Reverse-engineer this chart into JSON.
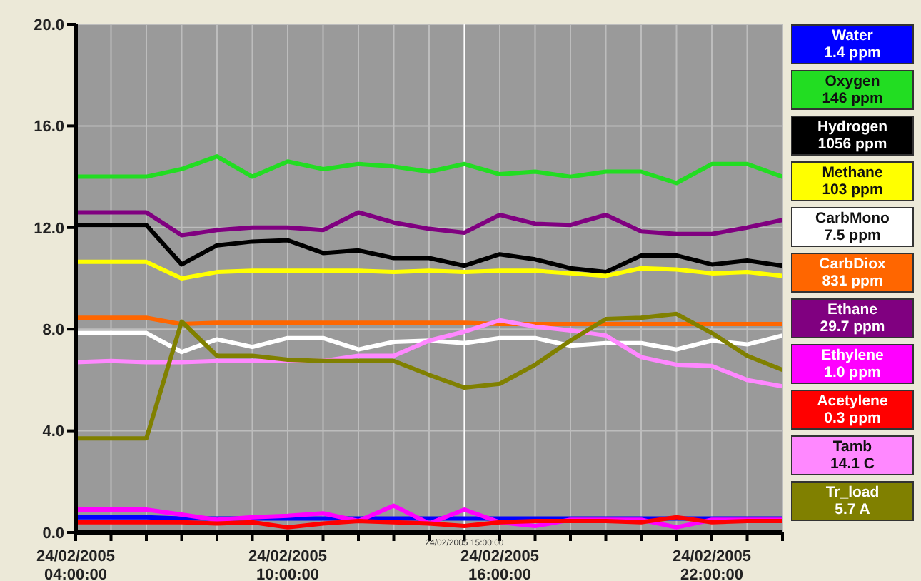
{
  "chart_data": {
    "type": "line",
    "x": [
      "2005-02-24T04:00",
      "2005-02-24T05:00",
      "2005-02-24T06:00",
      "2005-02-24T07:00",
      "2005-02-24T08:00",
      "2005-02-24T09:00",
      "2005-02-24T10:00",
      "2005-02-24T11:00",
      "2005-02-24T12:00",
      "2005-02-24T13:00",
      "2005-02-24T14:00",
      "2005-02-24T15:00",
      "2005-02-24T16:00",
      "2005-02-24T17:00",
      "2005-02-24T18:00",
      "2005-02-24T19:00",
      "2005-02-24T20:00",
      "2005-02-24T21:00",
      "2005-02-24T22:00",
      "2005-02-24T23:00",
      "2005-02-25T00:00"
    ],
    "xlim": [
      "2005-02-24T04:00",
      "2005-02-25T00:00"
    ],
    "xticks": [
      {
        "value": "2005-02-24T04:00",
        "label": "24/02/2005 04:00:00"
      },
      {
        "value": "2005-02-24T05:00",
        "label": null
      },
      {
        "value": "2005-02-24T06:00",
        "label": null
      },
      {
        "value": "2005-02-24T07:00",
        "label": null
      },
      {
        "value": "2005-02-24T08:00",
        "label": null
      },
      {
        "value": "2005-02-24T09:00",
        "label": null
      },
      {
        "value": "2005-02-24T10:00",
        "label": "24/02/2005 10:00:00"
      },
      {
        "value": "2005-02-24T11:00",
        "label": null
      },
      {
        "value": "2005-02-24T12:00",
        "label": null
      },
      {
        "value": "2005-02-24T13:00",
        "label": null
      },
      {
        "value": "2005-02-24T14:00",
        "label": null
      },
      {
        "value": "2005-02-24T15:00",
        "label": null
      },
      {
        "value": "2005-02-24T16:00",
        "label": "24/02/2005 16:00:00"
      },
      {
        "value": "2005-02-24T17:00",
        "label": null
      },
      {
        "value": "2005-02-24T18:00",
        "label": null
      },
      {
        "value": "2005-02-24T19:00",
        "label": null
      },
      {
        "value": "2005-02-24T20:00",
        "label": null
      },
      {
        "value": "2005-02-24T21:00",
        "label": null
      },
      {
        "value": "2005-02-24T22:00",
        "label": "24/02/2005 22:00:00"
      },
      {
        "value": "2005-02-24T23:00",
        "label": null
      },
      {
        "value": "2005-02-25T00:00",
        "label": null
      }
    ],
    "ylim": [
      0,
      20
    ],
    "yticks": [
      {
        "value": 0,
        "label": "0.0"
      },
      {
        "value": 4,
        "label": "4.0"
      },
      {
        "value": 8,
        "label": "8.0"
      },
      {
        "value": 12,
        "label": "12.0"
      },
      {
        "value": 16,
        "label": "16.0"
      },
      {
        "value": 20,
        "label": "20.0"
      }
    ],
    "grid": true,
    "legend": "right",
    "marker": "none",
    "line_style": "solid",
    "ref_lines": [
      {
        "axis": "x",
        "value": "2005-02-24T15:00",
        "label": "24/02/2005 15:00:00",
        "color": "#ffffff"
      }
    ],
    "series": [
      {
        "name": "Water 1.4 ppm",
        "color": "#0000ff",
        "values": [
          0.6,
          0.6,
          0.6,
          0.55,
          0.55,
          0.55,
          0.55,
          0.55,
          0.55,
          0.55,
          0.55,
          0.55,
          0.55,
          0.55,
          0.55,
          0.55,
          0.55,
          0.55,
          0.55,
          0.55,
          0.55
        ]
      },
      {
        "name": "Oxygen 146 ppm",
        "color": "#22dd22",
        "values": [
          14.0,
          14.0,
          14.0,
          14.3,
          14.8,
          14.0,
          14.6,
          14.3,
          14.5,
          14.4,
          14.2,
          14.5,
          14.1,
          14.2,
          14.0,
          14.2,
          14.2,
          13.75,
          14.5,
          14.5,
          14.0
        ]
      },
      {
        "name": "Hydrogen 1056 ppm",
        "color": "#000000",
        "values": [
          12.1,
          12.1,
          12.1,
          10.55,
          11.3,
          11.45,
          11.5,
          11.0,
          11.1,
          10.8,
          10.8,
          10.5,
          10.95,
          10.75,
          10.4,
          10.25,
          10.9,
          10.9,
          10.55,
          10.7,
          10.5
        ]
      },
      {
        "name": "Methane 103 ppm",
        "color": "#ffff00",
        "values": [
          10.65,
          10.65,
          10.65,
          10.0,
          10.25,
          10.3,
          10.3,
          10.3,
          10.3,
          10.25,
          10.3,
          10.25,
          10.3,
          10.3,
          10.2,
          10.1,
          10.4,
          10.35,
          10.2,
          10.25,
          10.1
        ]
      },
      {
        "name": "CarbMono 7.5 ppm",
        "color": "#ffffff",
        "values": [
          7.85,
          7.85,
          7.85,
          7.1,
          7.6,
          7.3,
          7.65,
          7.65,
          7.2,
          7.5,
          7.55,
          7.45,
          7.65,
          7.65,
          7.35,
          7.45,
          7.45,
          7.2,
          7.55,
          7.4,
          7.75
        ]
      },
      {
        "name": "CarbDiox 831 ppm",
        "color": "#ff6600",
        "values": [
          8.45,
          8.45,
          8.45,
          8.2,
          8.25,
          8.25,
          8.25,
          8.25,
          8.25,
          8.25,
          8.25,
          8.25,
          8.2,
          8.2,
          8.2,
          8.2,
          8.2,
          8.2,
          8.2,
          8.2,
          8.2
        ]
      },
      {
        "name": "Ethane 29.7 ppm",
        "color": "#800080",
        "values": [
          12.6,
          12.6,
          12.6,
          11.7,
          11.9,
          12.0,
          12.0,
          11.9,
          12.6,
          12.2,
          11.95,
          11.8,
          12.5,
          12.15,
          12.1,
          12.5,
          11.85,
          11.75,
          11.75,
          12.0,
          12.3
        ]
      },
      {
        "name": "Ethylene 1.0 ppm",
        "color": "#ff00ff",
        "values": [
          0.9,
          0.9,
          0.9,
          0.7,
          0.5,
          0.6,
          0.65,
          0.75,
          0.45,
          1.05,
          0.35,
          0.9,
          0.4,
          0.25,
          0.5,
          0.5,
          0.5,
          0.2,
          0.5,
          0.5,
          0.5
        ]
      },
      {
        "name": "Acetylene 0.3 ppm",
        "color": "#ff0000",
        "values": [
          0.4,
          0.4,
          0.4,
          0.4,
          0.35,
          0.4,
          0.2,
          0.35,
          0.45,
          0.4,
          0.35,
          0.25,
          0.4,
          0.45,
          0.45,
          0.45,
          0.4,
          0.6,
          0.4,
          0.45,
          0.45
        ]
      },
      {
        "name": "Tamb 14.1 C",
        "color": "#ff88ff",
        "values": [
          6.7,
          6.75,
          6.7,
          6.7,
          6.75,
          6.75,
          6.75,
          6.75,
          6.95,
          6.95,
          7.55,
          7.9,
          8.35,
          8.1,
          7.95,
          7.75,
          6.9,
          6.6,
          6.55,
          6.0,
          5.75
        ]
      },
      {
        "name": "Tr_load 5.7 A",
        "color": "#808000",
        "values": [
          3.7,
          3.7,
          3.7,
          8.3,
          6.95,
          6.95,
          6.8,
          6.75,
          6.75,
          6.75,
          6.2,
          5.7,
          5.85,
          6.6,
          7.55,
          8.4,
          8.45,
          8.6,
          7.85,
          6.95,
          6.4
        ]
      }
    ]
  }
}
